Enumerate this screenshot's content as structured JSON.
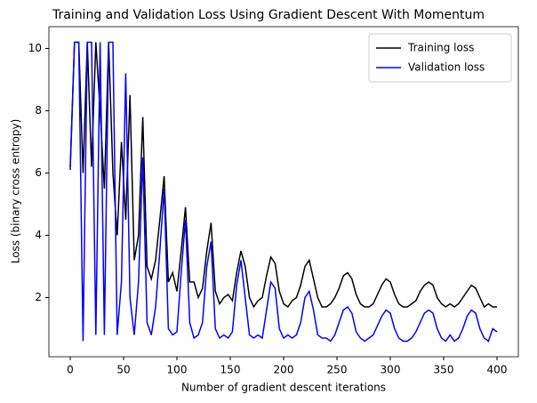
{
  "chart_data": {
    "type": "line",
    "title": "Training and Validation Loss Using Gradient Descent With Momentum",
    "x_label": "Number of gradient descent iterations",
    "y_label": "Loss (binary cross entropy)",
    "x": [
      0,
      4,
      8,
      12,
      16,
      20,
      24,
      28,
      32,
      36,
      40,
      44,
      48,
      52,
      56,
      60,
      64,
      68,
      72,
      76,
      80,
      84,
      88,
      92,
      96,
      100,
      104,
      108,
      112,
      116,
      120,
      124,
      128,
      132,
      136,
      140,
      144,
      148,
      152,
      156,
      160,
      164,
      168,
      172,
      176,
      180,
      184,
      188,
      192,
      196,
      200,
      204,
      208,
      212,
      216,
      220,
      224,
      228,
      232,
      236,
      240,
      244,
      248,
      252,
      256,
      260,
      264,
      268,
      272,
      276,
      280,
      284,
      288,
      292,
      296,
      300,
      304,
      308,
      312,
      316,
      320,
      324,
      328,
      332,
      336,
      340,
      344,
      348,
      352,
      356,
      360,
      364,
      368,
      372,
      376,
      380,
      384,
      388,
      392,
      396,
      400
    ],
    "series": [
      {
        "name": "Training loss",
        "color": "#000000",
        "values": [
          6.2,
          10.2,
          10.2,
          6.0,
          10.2,
          6.2,
          10.2,
          8.0,
          5.5,
          10.2,
          6.0,
          4.0,
          7.0,
          4.5,
          8.5,
          3.2,
          4.0,
          7.8,
          3.0,
          2.6,
          3.2,
          4.5,
          5.9,
          2.5,
          2.8,
          2.2,
          3.5,
          4.9,
          2.5,
          2.5,
          2.0,
          2.3,
          3.5,
          4.4,
          2.2,
          1.8,
          2.0,
          2.1,
          1.9,
          2.8,
          3.5,
          3.0,
          2.0,
          1.7,
          1.9,
          2.0,
          2.7,
          3.3,
          3.1,
          2.2,
          1.8,
          1.7,
          1.9,
          2.0,
          2.4,
          3.0,
          3.2,
          2.6,
          2.0,
          1.7,
          1.7,
          1.8,
          2.0,
          2.3,
          2.7,
          2.8,
          2.6,
          2.1,
          1.8,
          1.7,
          1.7,
          1.8,
          2.1,
          2.4,
          2.6,
          2.5,
          2.1,
          1.8,
          1.7,
          1.7,
          1.8,
          1.9,
          2.2,
          2.4,
          2.5,
          2.4,
          2.0,
          1.8,
          1.7,
          1.8,
          1.7,
          1.8,
          2.0,
          2.2,
          2.4,
          2.3,
          2.0,
          1.7,
          1.8,
          1.7,
          1.7
        ]
      },
      {
        "name": "Validation loss",
        "color": "#0000ff",
        "values": [
          6.1,
          10.2,
          10.2,
          0.6,
          10.2,
          10.2,
          0.8,
          10.2,
          0.8,
          10.2,
          10.2,
          0.8,
          2.5,
          9.2,
          2.0,
          0.8,
          2.5,
          6.5,
          1.2,
          0.8,
          1.7,
          3.5,
          5.5,
          1.0,
          0.8,
          0.9,
          2.8,
          4.5,
          1.2,
          0.7,
          0.8,
          1.2,
          3.0,
          3.8,
          1.0,
          0.7,
          0.8,
          0.7,
          0.9,
          2.4,
          3.2,
          2.0,
          0.8,
          0.7,
          0.8,
          0.7,
          1.6,
          2.5,
          2.3,
          1.0,
          0.7,
          0.8,
          0.7,
          0.8,
          1.2,
          2.0,
          2.2,
          1.6,
          0.8,
          0.7,
          0.7,
          0.6,
          0.8,
          1.2,
          1.6,
          1.7,
          1.5,
          0.9,
          0.7,
          0.6,
          0.7,
          0.8,
          1.1,
          1.4,
          1.6,
          1.5,
          1.0,
          0.7,
          0.6,
          0.6,
          0.7,
          0.9,
          1.2,
          1.5,
          1.6,
          1.5,
          1.0,
          0.7,
          0.6,
          0.8,
          0.6,
          0.7,
          1.0,
          1.4,
          1.6,
          1.5,
          1.0,
          0.7,
          0.6,
          1.0,
          0.9
        ]
      }
    ],
    "xlim": [
      -20,
      420
    ],
    "ylim": [
      0.1,
      10.7
    ],
    "xticks": [
      0,
      50,
      100,
      150,
      200,
      250,
      300,
      350,
      400
    ],
    "yticks": [
      2,
      4,
      6,
      8,
      10
    ],
    "legend": "upper right"
  }
}
